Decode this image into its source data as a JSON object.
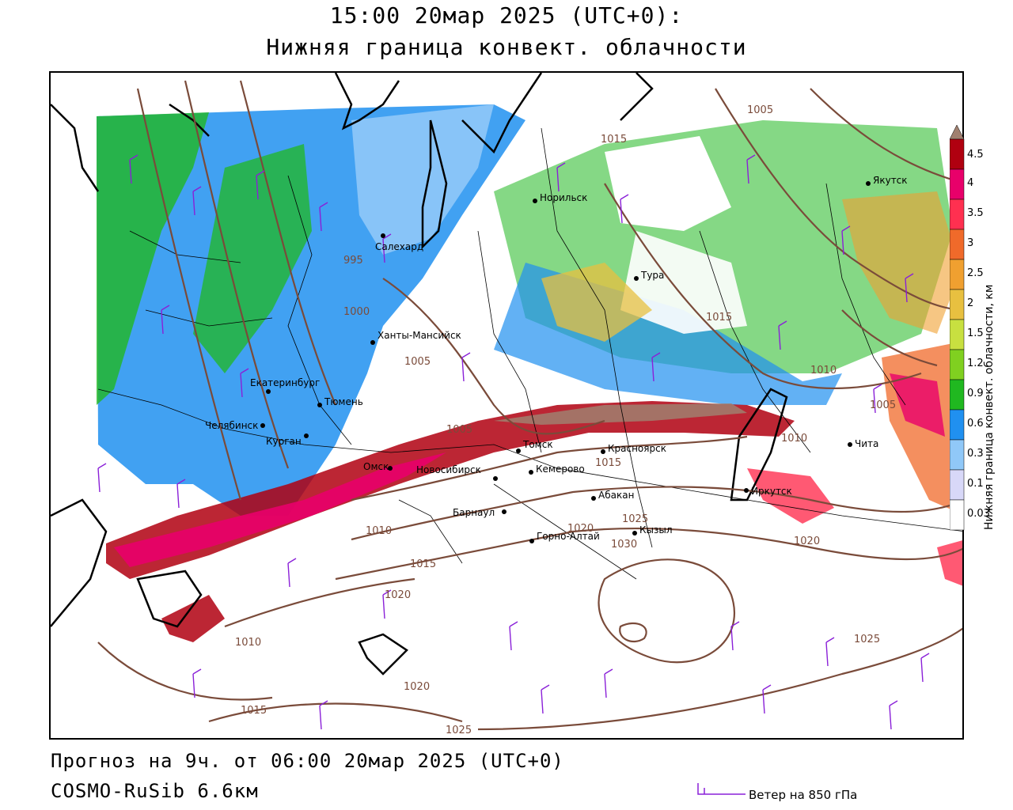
{
  "title": {
    "line1": "15:00 20мар 2025 (UTC+0):",
    "line2": "Нижняя граница конвект. облачности"
  },
  "footer": {
    "forecast": "Прогноз на 9ч. от 06:00 20мар 2025 (UTC+0)",
    "model": "COSMO-RuSib 6.6км",
    "wind_label": "Ветер на 850 гПа"
  },
  "colorbar": {
    "title": "Нижняя граница конвект. облачности, км",
    "levels": [
      "4.5",
      "4",
      "3.5",
      "3",
      "2.5",
      "2",
      "1.5",
      "1.2",
      "0.9",
      "0.6",
      "0.3",
      "0.1",
      "0.03"
    ],
    "colors": [
      "#a08070",
      "#b00010",
      "#e8006a",
      "#ff3050",
      "#f06a2a",
      "#f0a030",
      "#e8c040",
      "#c8e040",
      "#80d020",
      "#20b820",
      "#2090f0",
      "#90c8f8",
      "#d8d8f8",
      "#ffffff"
    ]
  },
  "cities": [
    {
      "name": "Норильск"
    },
    {
      "name": "Якутск"
    },
    {
      "name": "Салехард"
    },
    {
      "name": "Тура"
    },
    {
      "name": "Ханты-Мансийск"
    },
    {
      "name": "Екатеринбург"
    },
    {
      "name": "Тюмень"
    },
    {
      "name": "Челябинск"
    },
    {
      "name": "Курган"
    },
    {
      "name": "Омск"
    },
    {
      "name": "Томск"
    },
    {
      "name": "Новосибирск"
    },
    {
      "name": "Кемерово"
    },
    {
      "name": "Красноярск"
    },
    {
      "name": "Барнаул"
    },
    {
      "name": "Абакан"
    },
    {
      "name": "Горно-Алтай"
    },
    {
      "name": "Кызыл"
    },
    {
      "name": "Иркутск"
    },
    {
      "name": "Чита"
    }
  ],
  "isobars": [
    "1005",
    "1015",
    "995",
    "1000",
    "1005",
    "1015",
    "1010",
    "1005",
    "1010",
    "1005",
    "1015",
    "1010",
    "1020",
    "1025",
    "1030",
    "1015",
    "1020",
    "1010",
    "1015",
    "1020",
    "1025",
    "1025",
    "1020"
  ]
}
